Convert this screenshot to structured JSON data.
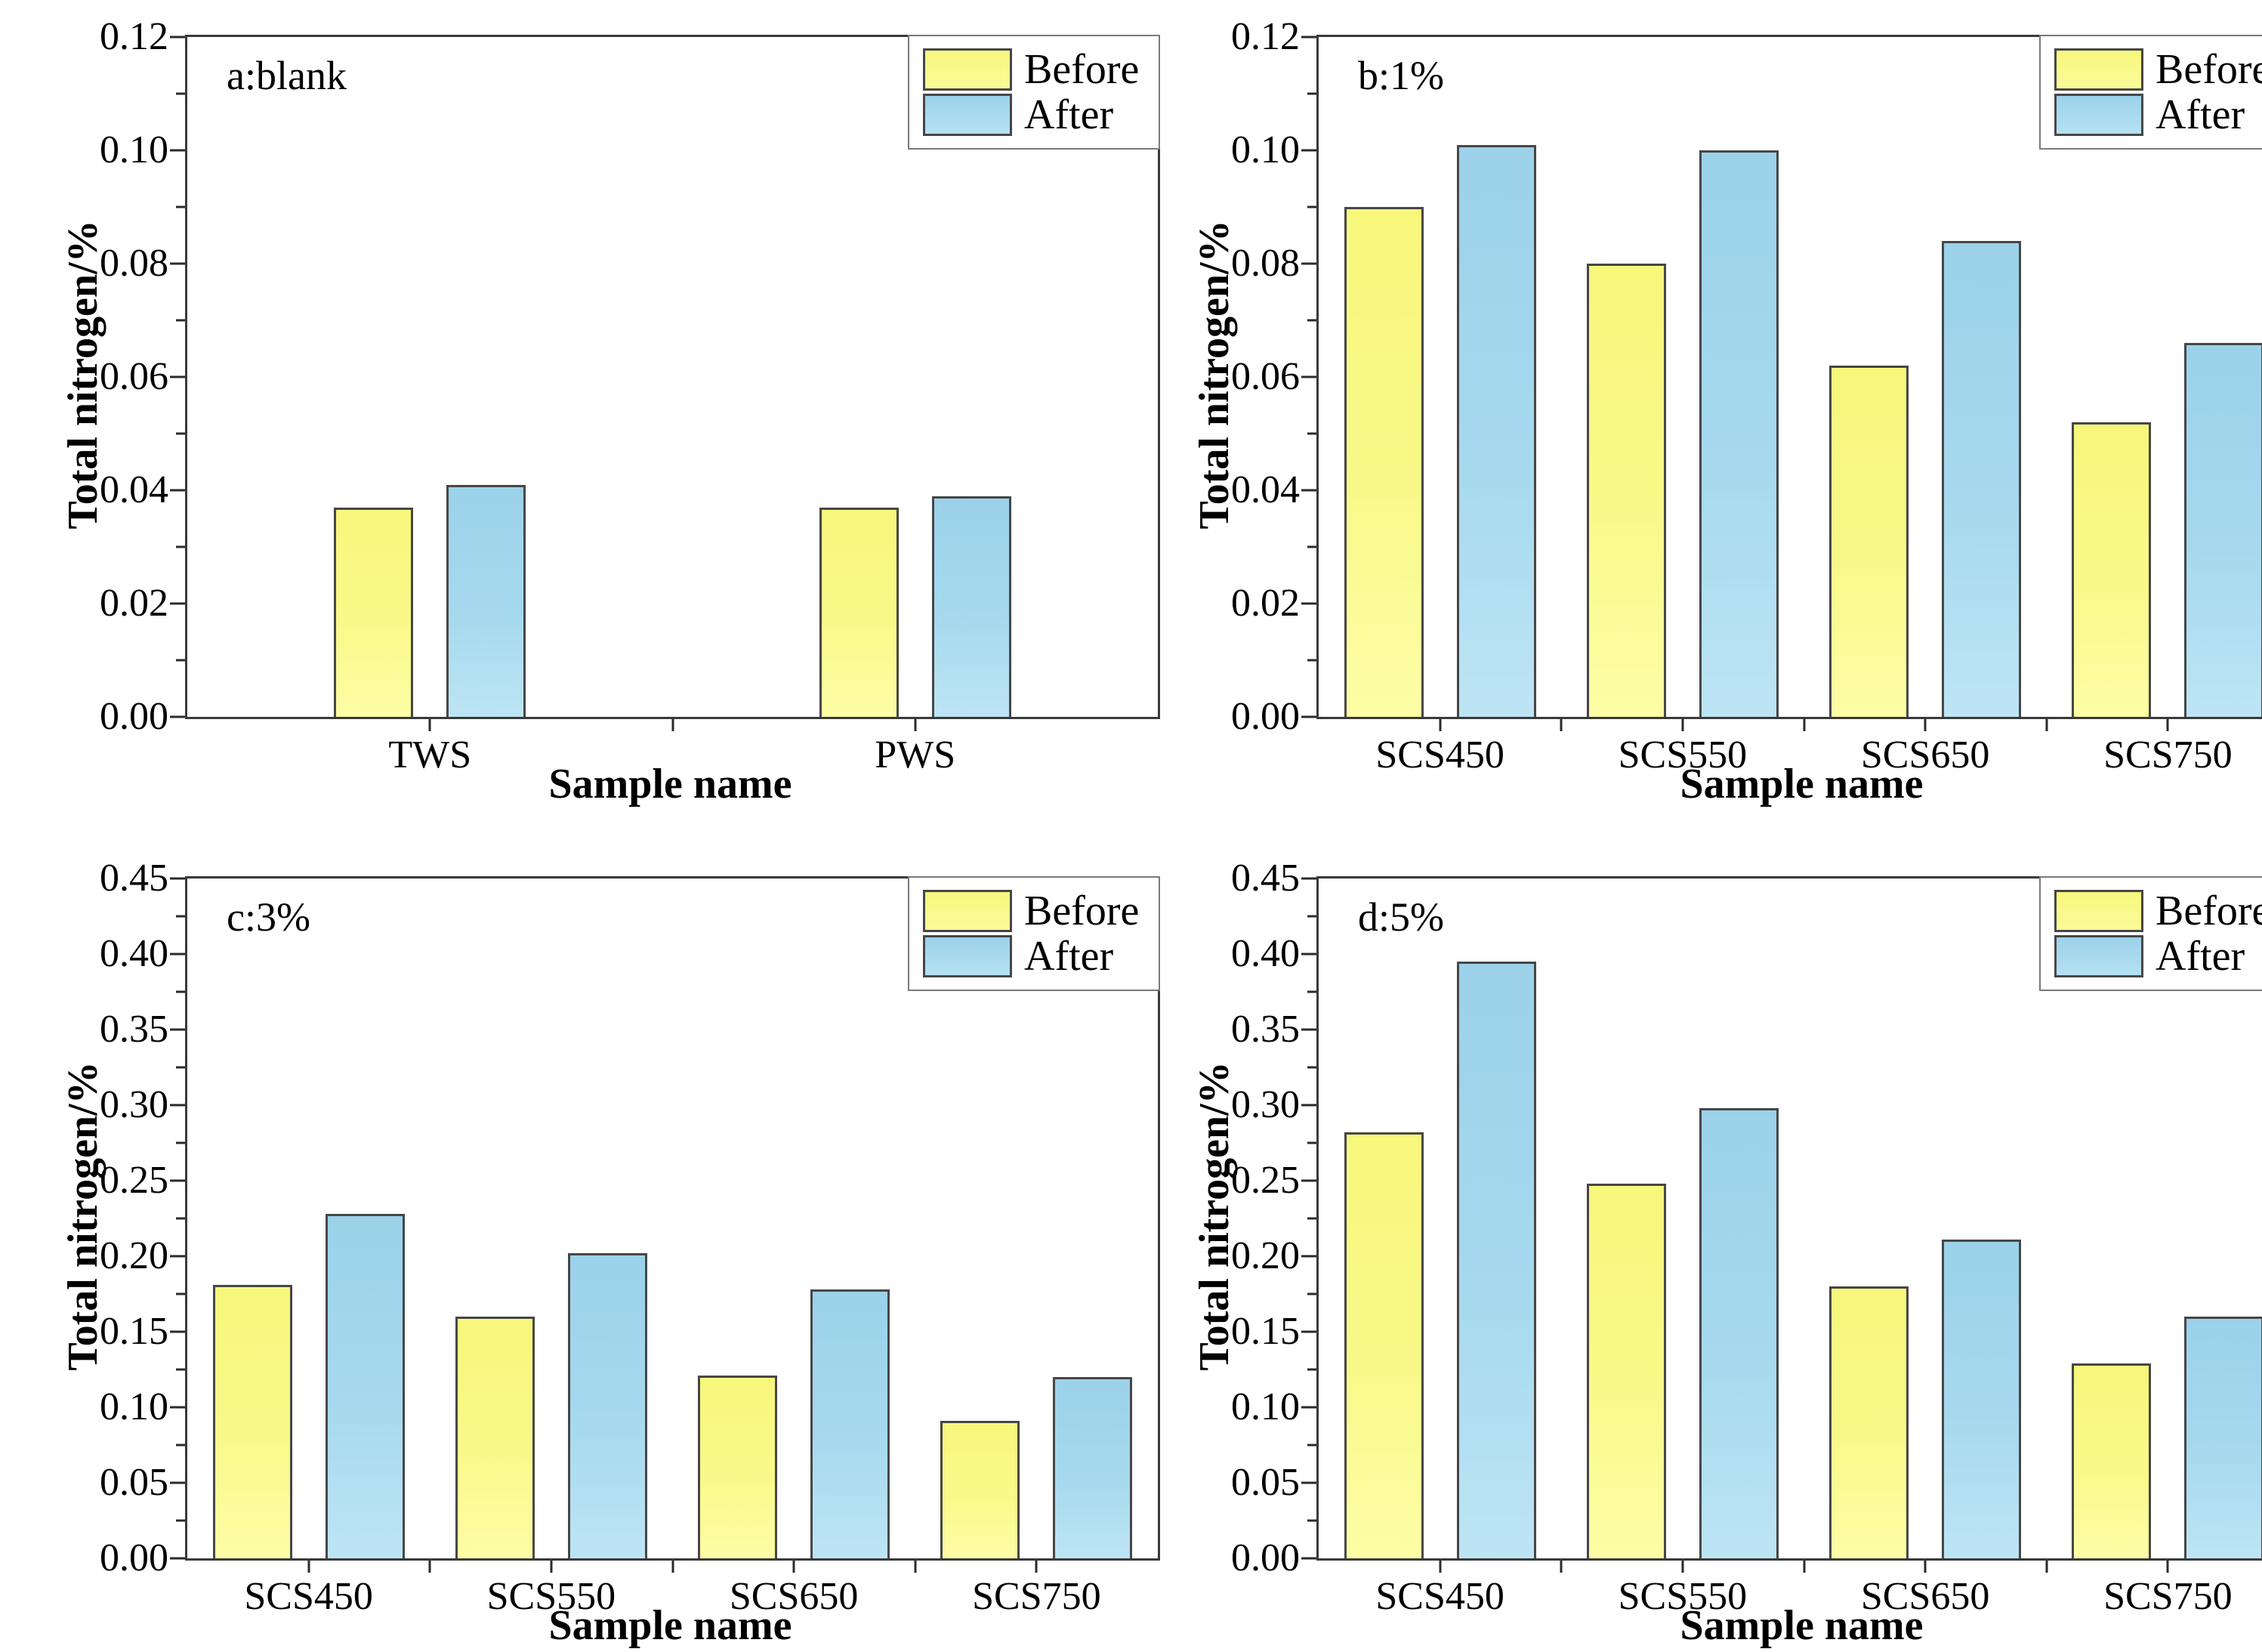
{
  "legend": {
    "before": "Before",
    "after": "After"
  },
  "colors": {
    "before_fill": "#f9f985",
    "after_fill": "#a4d8ee",
    "bar_border": "#474747",
    "frame": "#3a3a3a",
    "tick": "#2b2b2b",
    "legend_border": "#7a7a7a",
    "text": "#000000",
    "background": "#ffffff"
  },
  "chart_data": [
    {
      "panel": "a",
      "type": "bar",
      "panel_label": "a:blank",
      "categories": [
        "TWS",
        "PWS"
      ],
      "series": [
        {
          "name": "Before",
          "values": [
            0.037,
            0.037
          ]
        },
        {
          "name": "After",
          "values": [
            0.041,
            0.039
          ]
        }
      ],
      "xlabel": "Sample name",
      "ylabel": "Total nitrogen/%",
      "ylim": [
        0,
        0.12
      ],
      "ytick_step": 0.02,
      "ytick_decimals": 2,
      "grid": false,
      "legend_position": "top-right"
    },
    {
      "panel": "b",
      "type": "bar",
      "panel_label": "b:1%",
      "categories": [
        "SCS450",
        "SCS550",
        "SCS650",
        "SCS750"
      ],
      "series": [
        {
          "name": "Before",
          "values": [
            0.09,
            0.08,
            0.062,
            0.052
          ]
        },
        {
          "name": "After",
          "values": [
            0.101,
            0.1,
            0.084,
            0.066
          ]
        }
      ],
      "xlabel": "Sample name",
      "ylabel": "Total nitrogen/%",
      "ylim": [
        0,
        0.12
      ],
      "ytick_step": 0.02,
      "ytick_decimals": 2,
      "grid": false,
      "legend_position": "top-right"
    },
    {
      "panel": "c",
      "type": "bar",
      "panel_label": "c:3%",
      "categories": [
        "SCS450",
        "SCS550",
        "SCS650",
        "SCS750"
      ],
      "series": [
        {
          "name": "Before",
          "values": [
            0.181,
            0.16,
            0.121,
            0.091
          ]
        },
        {
          "name": "After",
          "values": [
            0.228,
            0.202,
            0.178,
            0.12
          ]
        }
      ],
      "xlabel": "Sample name",
      "ylabel": "Total nitrogen/%",
      "ylim": [
        0,
        0.45
      ],
      "ytick_step": 0.05,
      "ytick_decimals": 2,
      "grid": false,
      "legend_position": "top-right"
    },
    {
      "panel": "d",
      "type": "bar",
      "panel_label": "d:5%",
      "categories": [
        "SCS450",
        "SCS550",
        "SCS650",
        "SCS750"
      ],
      "series": [
        {
          "name": "Before",
          "values": [
            0.282,
            0.248,
            0.18,
            0.129
          ]
        },
        {
          "name": "After",
          "values": [
            0.395,
            0.298,
            0.211,
            0.16
          ]
        }
      ],
      "xlabel": "Sample name",
      "ylabel": "Total nitrogen/%",
      "ylim": [
        0,
        0.45
      ],
      "ytick_step": 0.05,
      "ytick_decimals": 2,
      "grid": false,
      "legend_position": "top-right"
    }
  ]
}
